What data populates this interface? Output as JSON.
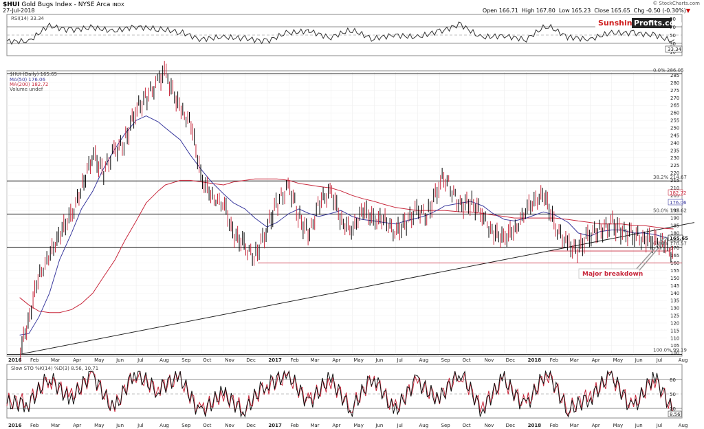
{
  "header": {
    "symbol": "$HUI",
    "name": "Gold Bugs Index - NYSE Arca",
    "exchange": "INDX",
    "date": "27-Jul-2018",
    "credit": "© StockCharts.com",
    "open_label": "Open",
    "open": "166.71",
    "high_label": "High",
    "high": "167.80",
    "low_label": "Low",
    "low": "165.23",
    "close_label": "Close",
    "close": "165.65",
    "chg_label": "Chg",
    "chg": "-0.50 (-0.30%)"
  },
  "brand": {
    "part1": "Sunshine",
    "part2": "Profits.com"
  },
  "rsi_panel": {
    "legend": "RSI(14) 33.34",
    "last_value": "33.34",
    "ticks": [
      "90",
      "70",
      "50",
      "30",
      "10"
    ]
  },
  "price_panel": {
    "legend_main": "$HUI (Daily) 165.65",
    "legend_ma50": "MA(50) 176.06",
    "legend_ma200": "MA(200) 182.72",
    "legend_volume": "Volume undef",
    "ma50_value": "176.06",
    "ma200_value": "182.72",
    "last_value": "165.65",
    "fib_labels": [
      "0.0% 286.05",
      "38.2% 214.67",
      "50.0% 192.62",
      "61.8% 170.57",
      "100.0% 99.19"
    ],
    "annotation": "Major breakdown"
  },
  "stoch_panel": {
    "legend": "Slow STO %K(14) %D(3) 8.56, 10.71",
    "last_k": "8.56",
    "ticks": [
      "80",
      "50",
      "20"
    ]
  },
  "x_axis_labels": [
    "2016",
    "Feb",
    "Mar",
    "Apr",
    "May",
    "Jun",
    "Jul",
    "Aug",
    "Sep",
    "Oct",
    "Nov",
    "Dec",
    "2017",
    "Feb",
    "Mar",
    "Apr",
    "May",
    "Jun",
    "Jul",
    "Aug",
    "Sep",
    "Oct",
    "Nov",
    "Dec",
    "2018",
    "Feb",
    "Mar",
    "Apr",
    "May",
    "Jun",
    "Jul",
    "Aug"
  ],
  "colors": {
    "price": "#000000",
    "ma50": "#3a3a9e",
    "ma200": "#c8283c",
    "annotation": "#c8283c",
    "brand": "#d02020"
  },
  "chart_data": [
    {
      "type": "line",
      "title": "RSI(14)",
      "ylim": [
        0,
        100
      ],
      "guides": [
        70,
        50,
        30
      ],
      "x": [
        "2016-01",
        "2016-02",
        "2016-03",
        "2016-04",
        "2016-05",
        "2016-06",
        "2016-07",
        "2016-08",
        "2016-09",
        "2016-10",
        "2016-11",
        "2016-12",
        "2017-01",
        "2017-02",
        "2017-03",
        "2017-04",
        "2017-05",
        "2017-06",
        "2017-07",
        "2017-08",
        "2017-09",
        "2017-10",
        "2017-11",
        "2017-12",
        "2018-01",
        "2018-02",
        "2018-03",
        "2018-04",
        "2018-05",
        "2018-06",
        "2018-07"
      ],
      "series": [
        {
          "name": "RSI(14)",
          "values": [
            35,
            72,
            62,
            68,
            60,
            70,
            65,
            58,
            40,
            45,
            42,
            35,
            55,
            60,
            45,
            62,
            42,
            50,
            45,
            58,
            75,
            45,
            48,
            40,
            72,
            45,
            40,
            55,
            55,
            50,
            33.34
          ]
        }
      ]
    },
    {
      "type": "line",
      "title": "$HUI (Daily)",
      "ylim": [
        98,
        288
      ],
      "x": [
        "2016-01-19",
        "2016-02-01",
        "2016-02-15",
        "2016-03-01",
        "2016-03-15",
        "2016-04-01",
        "2016-04-15",
        "2016-05-01",
        "2016-05-15",
        "2016-06-01",
        "2016-06-15",
        "2016-07-01",
        "2016-07-15",
        "2016-08-01",
        "2016-08-11",
        "2016-09-01",
        "2016-09-15",
        "2016-10-01",
        "2016-10-15",
        "2016-11-01",
        "2016-11-15",
        "2016-12-01",
        "2016-12-15",
        "2017-01-01",
        "2017-01-15",
        "2017-02-01",
        "2017-02-15",
        "2017-03-01",
        "2017-03-15",
        "2017-04-01",
        "2017-04-15",
        "2017-05-01",
        "2017-05-15",
        "2017-06-01",
        "2017-06-15",
        "2017-07-01",
        "2017-07-15",
        "2017-08-01",
        "2017-08-15",
        "2017-09-01",
        "2017-09-08",
        "2017-10-01",
        "2017-10-15",
        "2017-11-01",
        "2017-11-15",
        "2017-12-01",
        "2017-12-15",
        "2018-01-01",
        "2018-01-25",
        "2018-02-10",
        "2018-03-01",
        "2018-03-15",
        "2018-04-01",
        "2018-04-15",
        "2018-05-01",
        "2018-05-15",
        "2018-06-01",
        "2018-06-15",
        "2018-07-01",
        "2018-07-15",
        "2018-07-27"
      ],
      "series": [
        {
          "name": "$HUI",
          "values": [
            100,
            122,
            152,
            165,
            178,
            192,
            210,
            232,
            220,
            236,
            240,
            262,
            270,
            282,
            286,
            262,
            255,
            215,
            205,
            200,
            178,
            172,
            164,
            182,
            200,
            212,
            190,
            178,
            200,
            208,
            188,
            182,
            195,
            188,
            190,
            180,
            186,
            196,
            192,
            212,
            218,
            198,
            200,
            192,
            180,
            176,
            182,
            196,
            206,
            185,
            172,
            168,
            180,
            182,
            186,
            180,
            180,
            176,
            174,
            172,
            165.65
          ]
        },
        {
          "name": "MA(50)",
          "values": [
            112,
            113,
            124,
            140,
            162,
            180,
            196,
            208,
            222,
            236,
            246,
            255,
            258,
            254,
            250,
            242,
            232,
            222,
            214,
            206,
            200,
            196,
            190,
            184,
            187,
            193,
            196,
            193,
            191,
            193,
            195,
            191,
            189,
            188,
            187,
            186,
            188,
            190,
            192,
            196,
            198,
            200,
            201,
            198,
            193,
            189,
            188,
            190,
            194,
            192,
            187,
            180,
            178,
            181,
            182,
            182,
            180,
            180,
            179,
            177,
            176.06
          ]
        },
        {
          "name": "MA(200)",
          "values": [
            137,
            132,
            128,
            127,
            127,
            129,
            133,
            140,
            150,
            162,
            175,
            188,
            200,
            208,
            212,
            215,
            215,
            214,
            213,
            212,
            214,
            215,
            216,
            216,
            216,
            215,
            213,
            212,
            211,
            210,
            208,
            205,
            203,
            201,
            199,
            197,
            196,
            195,
            195,
            195,
            195,
            194,
            194,
            193,
            192,
            191,
            190,
            190,
            190,
            190,
            189,
            188,
            187,
            186,
            186,
            186,
            185,
            185,
            184,
            183,
            182.72
          ]
        }
      ],
      "levels": [
        {
          "label": "0.0%",
          "value": 286.05
        },
        {
          "label": "38.2%",
          "value": 214.67
        },
        {
          "label": "50.0%",
          "value": 192.62
        },
        {
          "label": "61.8%",
          "value": 170.57
        },
        {
          "label": "100.0%",
          "value": 99.19
        }
      ],
      "extra_levels": [
        160,
        168
      ]
    },
    {
      "type": "line",
      "title": "Slow STO %K(14) %D(3)",
      "ylim": [
        0,
        100
      ],
      "guides": [
        80,
        50,
        20
      ],
      "x": [
        "2016-01",
        "2016-02",
        "2016-03",
        "2016-04",
        "2016-05",
        "2016-06",
        "2016-07",
        "2016-08",
        "2016-09",
        "2016-10",
        "2016-11",
        "2016-12",
        "2017-01",
        "2017-02",
        "2017-03",
        "2017-04",
        "2017-05",
        "2017-06",
        "2017-07",
        "2017-08",
        "2017-09",
        "2017-10",
        "2017-11",
        "2017-12",
        "2018-01",
        "2018-02",
        "2018-03",
        "2018-04",
        "2018-05",
        "2018-06",
        "2018-07"
      ],
      "series": [
        {
          "name": "%K",
          "values": [
            30,
            85,
            40,
            90,
            20,
            95,
            60,
            85,
            10,
            50,
            15,
            70,
            90,
            30,
            80,
            20,
            85,
            15,
            75,
            40,
            95,
            20,
            80,
            25,
            95,
            15,
            40,
            90,
            20,
            85,
            8.56
          ]
        },
        {
          "name": "%D",
          "values": [
            35,
            80,
            45,
            85,
            25,
            90,
            62,
            80,
            15,
            48,
            20,
            65,
            85,
            35,
            75,
            25,
            80,
            20,
            70,
            45,
            90,
            25,
            75,
            30,
            90,
            20,
            45,
            85,
            25,
            80,
            10.71
          ]
        }
      ]
    }
  ]
}
